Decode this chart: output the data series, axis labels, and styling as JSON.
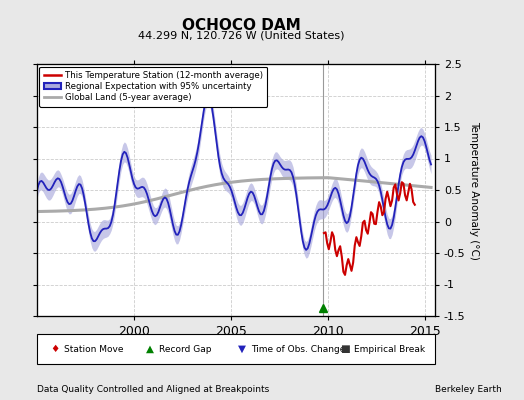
{
  "title": "OCHOCO DAM",
  "subtitle": "44.299 N, 120.726 W (United States)",
  "ylabel": "Temperature Anomaly (°C)",
  "footer_left": "Data Quality Controlled and Aligned at Breakpoints",
  "footer_right": "Berkeley Earth",
  "xlim": [
    1995.0,
    2015.5
  ],
  "ylim": [
    -1.5,
    2.5
  ],
  "yticks": [
    -1.5,
    -1.0,
    -0.5,
    0.0,
    0.5,
    1.0,
    1.5,
    2.0,
    2.5
  ],
  "xticks": [
    2000,
    2005,
    2010,
    2015
  ],
  "bg_color": "#e8e8e8",
  "plot_bg_color": "#ffffff",
  "grid_color": "#cccccc",
  "vertical_line_x": 2009.75,
  "record_gap_x": 2009.75,
  "record_gap_y": -1.38,
  "regional_color": "#2222bb",
  "regional_fill_color": "#aaaadd",
  "station_color": "#cc0000",
  "global_color": "#aaaaaa",
  "legend_station": "This Temperature Station (12-month average)",
  "legend_regional": "Regional Expectation with 95% uncertainty",
  "legend_global": "Global Land (5-year average)"
}
